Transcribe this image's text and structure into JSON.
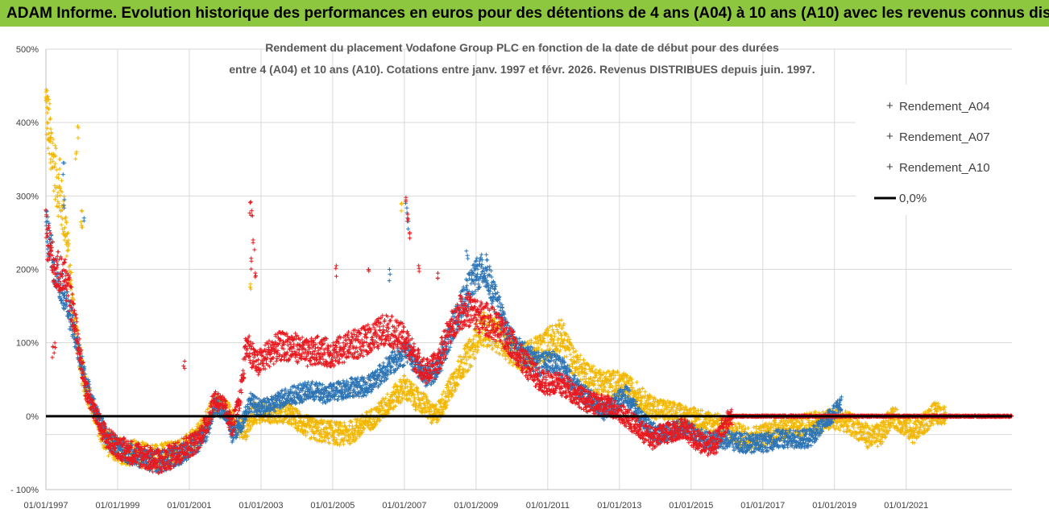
{
  "header": {
    "banner": "ADAM Informe. Evolution historique des performances en euros pour des détentions de 4 ans (A04) à 10 ans (A10) avec les revenus connus distribués"
  },
  "chart_data": {
    "type": "scatter",
    "title_line1": "Rendement du placement Vodafone Group PLC en fonction de la date de début pour des durées",
    "title_line2": "entre 4 (A04) et 10 ans (A10). Cotations entre janv. 1997 et févr. 2026. Revenus DISTRIBUES depuis juin. 1997.",
    "xlabel": "",
    "ylabel": "",
    "x_range": [
      1997.0,
      2023.95
    ],
    "y_range": [
      -100,
      500
    ],
    "y_ticks": [
      {
        "value": 500,
        "label": "500%"
      },
      {
        "value": 400,
        "label": "400%"
      },
      {
        "value": 300,
        "label": "300%"
      },
      {
        "value": 200,
        "label": "200%"
      },
      {
        "value": 100,
        "label": "100%"
      },
      {
        "value": 0,
        "label": "0%"
      },
      {
        "value": -100,
        "label": "- 100%"
      }
    ],
    "x_ticks": [
      {
        "value": 1997,
        "label": "01/01/1997"
      },
      {
        "value": 1999,
        "label": "01/01/1999"
      },
      {
        "value": 2001,
        "label": "01/01/2001"
      },
      {
        "value": 2003,
        "label": "01/01/2003"
      },
      {
        "value": 2005,
        "label": "01/01/2005"
      },
      {
        "value": 2007,
        "label": "01/01/2007"
      },
      {
        "value": 2009,
        "label": "01/01/2009"
      },
      {
        "value": 2011,
        "label": "01/01/2011"
      },
      {
        "value": 2013,
        "label": "01/01/2013"
      },
      {
        "value": 2015,
        "label": "01/01/2015"
      },
      {
        "value": 2017,
        "label": "01/01/2017"
      },
      {
        "value": 2019,
        "label": "01/01/2019"
      },
      {
        "value": 2021,
        "label": "01/01/2021"
      }
    ],
    "grid": true,
    "legend_position": "top-right",
    "series": [
      {
        "name": "Rendement_A04",
        "color": "#f2b705",
        "end": 2022.1,
        "points": [
          [
            1997.0,
            420
          ],
          [
            1997.3,
            320
          ],
          [
            1997.55,
            260
          ],
          [
            1997.75,
            150
          ],
          [
            1998.0,
            60
          ],
          [
            1998.3,
            10
          ],
          [
            1998.6,
            -30
          ],
          [
            1998.9,
            -45
          ],
          [
            1999.2,
            -48
          ],
          [
            1999.5,
            -50
          ],
          [
            1999.8,
            -55
          ],
          [
            2000.2,
            -55
          ],
          [
            2000.6,
            -50
          ],
          [
            2001.0,
            -40
          ],
          [
            2001.35,
            -20
          ],
          [
            2001.7,
            15
          ],
          [
            2002.0,
            10
          ],
          [
            2002.3,
            -10
          ],
          [
            2002.55,
            -20
          ],
          [
            2002.8,
            5
          ],
          [
            2003.0,
            5
          ],
          [
            2003.4,
            5
          ],
          [
            2003.7,
            5
          ],
          [
            2004.0,
            -5
          ],
          [
            2004.3,
            -15
          ],
          [
            2004.6,
            -20
          ],
          [
            2005.0,
            -22
          ],
          [
            2005.3,
            -25
          ],
          [
            2005.6,
            -20
          ],
          [
            2005.9,
            -10
          ],
          [
            2006.2,
            0
          ],
          [
            2006.5,
            15
          ],
          [
            2006.8,
            30
          ],
          [
            2007.0,
            40
          ],
          [
            2007.3,
            25
          ],
          [
            2007.6,
            15
          ],
          [
            2007.8,
            0
          ],
          [
            2008.0,
            10
          ],
          [
            2008.3,
            40
          ],
          [
            2008.6,
            70
          ],
          [
            2008.9,
            90
          ],
          [
            2009.1,
            120
          ],
          [
            2009.4,
            115
          ],
          [
            2009.7,
            105
          ],
          [
            2010.0,
            90
          ],
          [
            2010.3,
            80
          ],
          [
            2010.6,
            85
          ],
          [
            2010.9,
            95
          ],
          [
            2011.1,
            105
          ],
          [
            2011.4,
            110
          ],
          [
            2011.7,
            75
          ],
          [
            2012.0,
            60
          ],
          [
            2012.3,
            50
          ],
          [
            2012.6,
            45
          ],
          [
            2012.9,
            45
          ],
          [
            2013.2,
            40
          ],
          [
            2013.5,
            30
          ],
          [
            2013.8,
            15
          ],
          [
            2014.1,
            10
          ],
          [
            2014.5,
            5
          ],
          [
            2014.9,
            0
          ],
          [
            2015.3,
            -5
          ],
          [
            2015.7,
            -10
          ],
          [
            2016.1,
            -20
          ],
          [
            2016.5,
            -30
          ],
          [
            2016.9,
            -28
          ],
          [
            2017.3,
            -20
          ],
          [
            2017.7,
            -15
          ],
          [
            2018.1,
            -12
          ],
          [
            2018.5,
            -8
          ],
          [
            2018.9,
            -5
          ],
          [
            2019.2,
            -5
          ],
          [
            2019.6,
            -15
          ],
          [
            2020.0,
            -30
          ],
          [
            2020.3,
            -25
          ],
          [
            2020.6,
            0
          ],
          [
            2020.9,
            -10
          ],
          [
            2021.2,
            -22
          ],
          [
            2021.5,
            -10
          ],
          [
            2021.8,
            5
          ],
          [
            2022.1,
            0
          ]
        ]
      },
      {
        "name": "Rendement_A07",
        "color": "#2e75b6",
        "end": 2019.2,
        "points": [
          [
            1997.0,
            260
          ],
          [
            1997.25,
            200
          ],
          [
            1997.55,
            160
          ],
          [
            1997.8,
            110
          ],
          [
            1998.1,
            50
          ],
          [
            1998.4,
            5
          ],
          [
            1998.7,
            -30
          ],
          [
            1999.0,
            -42
          ],
          [
            1999.3,
            -50
          ],
          [
            1999.6,
            -55
          ],
          [
            1999.9,
            -60
          ],
          [
            2000.2,
            -62
          ],
          [
            2000.5,
            -58
          ],
          [
            2000.8,
            -50
          ],
          [
            2001.2,
            -38
          ],
          [
            2001.5,
            -20
          ],
          [
            2001.7,
            15
          ],
          [
            2002.0,
            5
          ],
          [
            2002.2,
            -25
          ],
          [
            2002.45,
            -10
          ],
          [
            2002.7,
            20
          ],
          [
            2003.0,
            10
          ],
          [
            2003.3,
            15
          ],
          [
            2003.6,
            25
          ],
          [
            2004.0,
            30
          ],
          [
            2004.4,
            35
          ],
          [
            2004.8,
            30
          ],
          [
            2005.2,
            35
          ],
          [
            2005.5,
            40
          ],
          [
            2005.9,
            40
          ],
          [
            2006.3,
            55
          ],
          [
            2006.6,
            70
          ],
          [
            2006.9,
            80
          ],
          [
            2007.1,
            90
          ],
          [
            2007.3,
            70
          ],
          [
            2007.6,
            55
          ],
          [
            2007.9,
            60
          ],
          [
            2008.2,
            100
          ],
          [
            2008.5,
            140
          ],
          [
            2008.8,
            175
          ],
          [
            2009.0,
            190
          ],
          [
            2009.2,
            200
          ],
          [
            2009.4,
            180
          ],
          [
            2009.6,
            150
          ],
          [
            2009.9,
            110
          ],
          [
            2010.2,
            90
          ],
          [
            2010.5,
            80
          ],
          [
            2010.8,
            70
          ],
          [
            2011.1,
            75
          ],
          [
            2011.4,
            65
          ],
          [
            2011.7,
            45
          ],
          [
            2012.0,
            30
          ],
          [
            2012.3,
            20
          ],
          [
            2012.6,
            5
          ],
          [
            2012.9,
            20
          ],
          [
            2013.2,
            30
          ],
          [
            2013.5,
            5
          ],
          [
            2013.8,
            -15
          ],
          [
            2014.1,
            -25
          ],
          [
            2014.4,
            -20
          ],
          [
            2014.8,
            -15
          ],
          [
            2015.1,
            -25
          ],
          [
            2015.5,
            -35
          ],
          [
            2015.9,
            -32
          ],
          [
            2016.3,
            -35
          ],
          [
            2016.7,
            -38
          ],
          [
            2017.1,
            -35
          ],
          [
            2017.5,
            -30
          ],
          [
            2017.9,
            -32
          ],
          [
            2018.3,
            -30
          ],
          [
            2018.7,
            -10
          ],
          [
            2019.0,
            5
          ],
          [
            2019.2,
            15
          ]
        ]
      },
      {
        "name": "Rendement_A10",
        "color": "#e8191f",
        "end": 2023.95,
        "points": [
          [
            1997.0,
            250
          ],
          [
            1997.25,
            200
          ],
          [
            1997.55,
            190
          ],
          [
            1997.8,
            130
          ],
          [
            1998.1,
            40
          ],
          [
            1998.4,
            0
          ],
          [
            1998.7,
            -30
          ],
          [
            1999.0,
            -42
          ],
          [
            1999.3,
            -48
          ],
          [
            1999.6,
            -52
          ],
          [
            1999.9,
            -58
          ],
          [
            2000.2,
            -62
          ],
          [
            2000.5,
            -55
          ],
          [
            2000.8,
            -45
          ],
          [
            2001.2,
            -35
          ],
          [
            2001.5,
            -10
          ],
          [
            2001.7,
            25
          ],
          [
            2002.0,
            10
          ],
          [
            2002.2,
            -15
          ],
          [
            2002.4,
            20
          ],
          [
            2002.6,
            100
          ],
          [
            2002.9,
            70
          ],
          [
            2003.2,
            85
          ],
          [
            2003.5,
            95
          ],
          [
            2003.9,
            95
          ],
          [
            2004.3,
            85
          ],
          [
            2004.6,
            90
          ],
          [
            2005.0,
            85
          ],
          [
            2005.4,
            95
          ],
          [
            2005.8,
            100
          ],
          [
            2006.2,
            110
          ],
          [
            2006.5,
            120
          ],
          [
            2006.8,
            110
          ],
          [
            2007.0,
            105
          ],
          [
            2007.3,
            80
          ],
          [
            2007.6,
            60
          ],
          [
            2007.9,
            70
          ],
          [
            2008.2,
            110
          ],
          [
            2008.5,
            140
          ],
          [
            2008.8,
            145
          ],
          [
            2009.1,
            135
          ],
          [
            2009.4,
            130
          ],
          [
            2009.7,
            115
          ],
          [
            2010.0,
            100
          ],
          [
            2010.3,
            75
          ],
          [
            2010.6,
            60
          ],
          [
            2010.9,
            45
          ],
          [
            2011.2,
            45
          ],
          [
            2011.5,
            40
          ],
          [
            2011.8,
            30
          ],
          [
            2012.1,
            20
          ],
          [
            2012.4,
            15
          ],
          [
            2012.7,
            15
          ],
          [
            2013.0,
            5
          ],
          [
            2013.3,
            -5
          ],
          [
            2013.6,
            -20
          ],
          [
            2013.9,
            -30
          ],
          [
            2014.2,
            -25
          ],
          [
            2014.5,
            -20
          ],
          [
            2014.8,
            -15
          ],
          [
            2015.1,
            -30
          ],
          [
            2015.4,
            -38
          ],
          [
            2015.7,
            -35
          ],
          [
            2015.9,
            -15
          ],
          [
            2016.1,
            0
          ],
          [
            2023.95,
            0
          ]
        ]
      }
    ],
    "spikes": [
      {
        "series": "Rendement_A04",
        "points": [
          [
            1997.02,
            445
          ],
          [
            1997.03,
            430
          ],
          [
            1997.06,
            400
          ],
          [
            1997.1,
            380
          ],
          [
            1997.15,
            350
          ],
          [
            1997.4,
            350
          ],
          [
            1997.9,
            395
          ],
          [
            1997.85,
            360
          ],
          [
            1998.0,
            280
          ],
          [
            1998.0,
            260
          ],
          [
            2002.7,
            180
          ],
          [
            2006.9,
            290
          ]
        ]
      },
      {
        "series": "Rendement_A07",
        "points": [
          [
            1997.5,
            345
          ],
          [
            1998.05,
            270
          ],
          [
            1997.5,
            295
          ],
          [
            2007.05,
            290
          ],
          [
            2007.1,
            270
          ],
          [
            2008.75,
            225
          ],
          [
            2009.0,
            215
          ],
          [
            2009.3,
            220
          ],
          [
            2006.6,
            200
          ]
        ]
      },
      {
        "series": "Rendement_A10",
        "points": [
          [
            2002.7,
            292
          ],
          [
            2002.75,
            280
          ],
          [
            2002.8,
            240
          ],
          [
            2002.72,
            215
          ],
          [
            2002.85,
            195
          ],
          [
            2005.1,
            205
          ],
          [
            2006.0,
            200
          ],
          [
            2007.05,
            298
          ],
          [
            2007.08,
            275
          ],
          [
            2007.15,
            250
          ],
          [
            2007.4,
            205
          ],
          [
            2007.95,
            195
          ],
          [
            1997.25,
            100
          ],
          [
            1997.2,
            95
          ],
          [
            2000.85,
            75
          ]
        ]
      }
    ],
    "reference_line": {
      "name": "0,0%",
      "value": 0,
      "color": "#000000"
    }
  }
}
